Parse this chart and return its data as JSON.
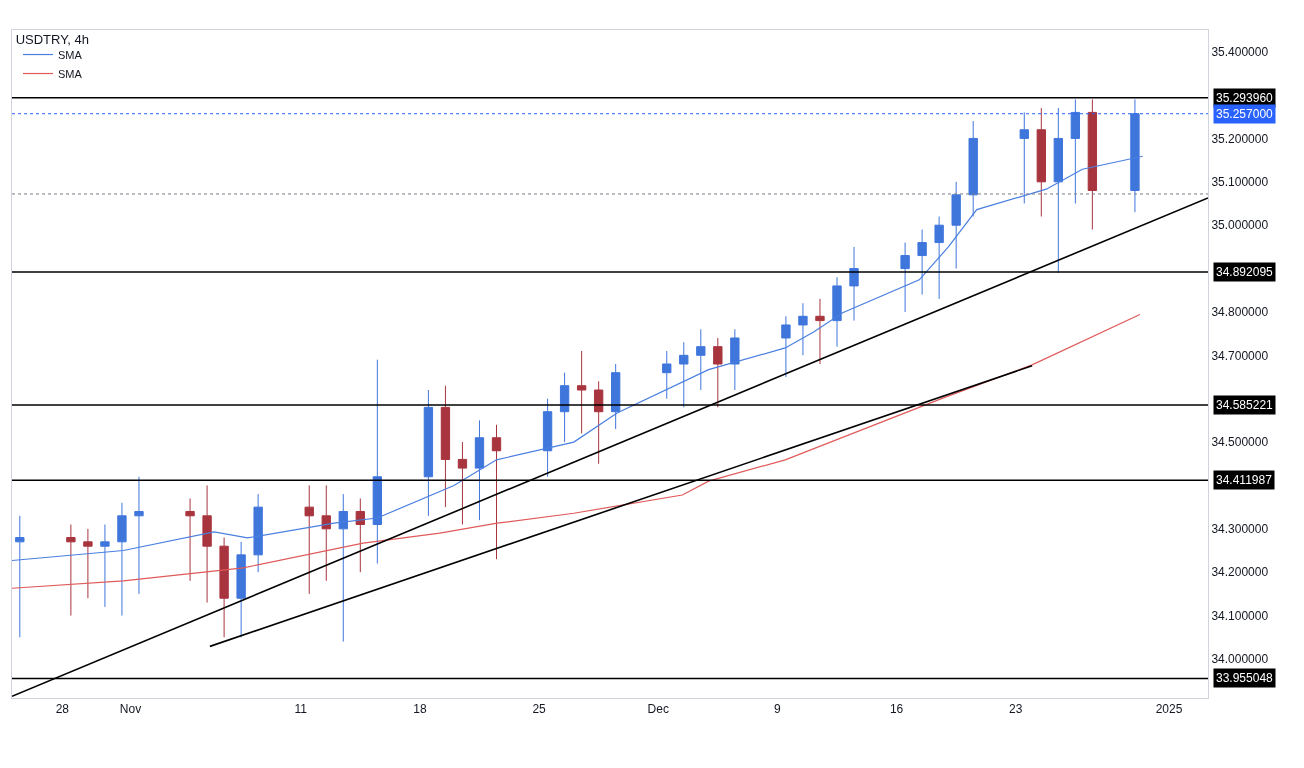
{
  "chart_data": {
    "type": "candlestick",
    "title": "USDTRY, 4h",
    "x": [
      "2024-10-25T12:00",
      "2024-10-28T12:00",
      "2024-10-29T12:00",
      "2024-10-30T12:00",
      "2024-10-31T12:00",
      "2024-11-01T12:00",
      "2024-11-04T12:00",
      "2024-11-05T12:00",
      "2024-11-06T12:00",
      "2024-11-07T12:00",
      "2024-11-08T12:00",
      "2024-11-11T12:00",
      "2024-11-12T12:00",
      "2024-11-13T12:00",
      "2024-11-14T12:00",
      "2024-11-15T12:00",
      "2024-11-18T12:00",
      "2024-11-19T12:00",
      "2024-11-20T12:00",
      "2024-11-21T12:00",
      "2024-11-22T12:00",
      "2024-11-25T12:00",
      "2024-11-26T12:00",
      "2024-11-27T12:00",
      "2024-11-28T12:00",
      "2024-11-29T12:00",
      "2024-12-02T12:00",
      "2024-12-03T12:00",
      "2024-12-04T12:00",
      "2024-12-05T12:00",
      "2024-12-06T12:00",
      "2024-12-09T12:00",
      "2024-12-10T12:00",
      "2024-12-11T12:00",
      "2024-12-12T12:00",
      "2024-12-13T12:00",
      "2024-12-16T12:00",
      "2024-12-17T12:00",
      "2024-12-18T12:00",
      "2024-12-19T12:00",
      "2024-12-20T12:00",
      "2024-12-23T12:00",
      "2024-12-24T12:00",
      "2024-12-25T12:00",
      "2024-12-26T12:00",
      "2024-12-27T12:00",
      "2024-12-30T00:00"
    ],
    "ohlc": [
      [
        34.27,
        34.33,
        34.05,
        34.28
      ],
      [
        34.28,
        34.31,
        34.1,
        34.27
      ],
      [
        34.27,
        34.3,
        34.14,
        34.26
      ],
      [
        34.26,
        34.31,
        34.12,
        34.27
      ],
      [
        34.27,
        34.36,
        34.1,
        34.33
      ],
      [
        34.33,
        34.42,
        34.15,
        34.34
      ],
      [
        34.34,
        34.37,
        34.18,
        34.33
      ],
      [
        34.33,
        34.4,
        34.13,
        34.26
      ],
      [
        34.26,
        34.28,
        34.05,
        34.14
      ],
      [
        34.14,
        34.27,
        34.05,
        34.24
      ],
      [
        34.24,
        34.38,
        34.2,
        34.35
      ],
      [
        34.35,
        34.4,
        34.15,
        34.33
      ],
      [
        34.33,
        34.4,
        34.18,
        34.3
      ],
      [
        34.3,
        34.38,
        34.04,
        34.34
      ],
      [
        34.34,
        34.37,
        34.2,
        34.31
      ],
      [
        34.31,
        34.69,
        34.22,
        34.42
      ],
      [
        34.42,
        34.62,
        34.33,
        34.58
      ],
      [
        34.58,
        34.63,
        34.35,
        34.46
      ],
      [
        34.46,
        34.5,
        34.31,
        34.44
      ],
      [
        34.44,
        34.55,
        34.32,
        34.51
      ],
      [
        34.51,
        34.54,
        34.23,
        34.48
      ],
      [
        34.48,
        34.6,
        34.42,
        34.57
      ],
      [
        34.57,
        34.66,
        34.5,
        34.63
      ],
      [
        34.63,
        34.71,
        34.52,
        34.62
      ],
      [
        34.62,
        34.64,
        34.45,
        34.57
      ],
      [
        34.57,
        34.68,
        34.53,
        34.66
      ],
      [
        34.66,
        34.71,
        34.6,
        34.68
      ],
      [
        34.68,
        34.73,
        34.58,
        34.7
      ],
      [
        34.7,
        34.76,
        34.62,
        34.72
      ],
      [
        34.72,
        34.74,
        34.58,
        34.68
      ],
      [
        34.68,
        34.76,
        34.62,
        34.74
      ],
      [
        34.74,
        34.79,
        34.65,
        34.77
      ],
      [
        34.77,
        34.82,
        34.7,
        34.79
      ],
      [
        34.79,
        34.83,
        34.68,
        34.78
      ],
      [
        34.78,
        34.88,
        34.72,
        34.86
      ],
      [
        34.86,
        34.95,
        34.78,
        34.9
      ],
      [
        34.9,
        34.96,
        34.8,
        34.93
      ],
      [
        34.93,
        34.99,
        34.84,
        34.96
      ],
      [
        34.96,
        35.02,
        34.83,
        35.0
      ],
      [
        35.0,
        35.1,
        34.9,
        35.07
      ],
      [
        35.07,
        35.24,
        35.02,
        35.2
      ],
      [
        35.2,
        35.26,
        35.05,
        35.22
      ],
      [
        35.22,
        35.27,
        35.02,
        35.1
      ],
      [
        35.1,
        35.27,
        34.89,
        35.2
      ],
      [
        35.2,
        35.29,
        35.05,
        35.26
      ],
      [
        35.26,
        35.29,
        34.99,
        35.08
      ],
      [
        35.08,
        35.29,
        35.03,
        35.257
      ]
    ],
    "colors": [
      "#3f76dc",
      "#a8353e",
      "#a8353e",
      "#3f76dc",
      "#3f76dc",
      "#3f76dc",
      "#a8353e",
      "#a8353e",
      "#a8353e",
      "#3f76dc",
      "#3f76dc",
      "#a8353e",
      "#a8353e",
      "#3f76dc",
      "#a8353e",
      "#3f76dc",
      "#3f76dc",
      "#a8353e",
      "#a8353e",
      "#3f76dc",
      "#a8353e",
      "#3f76dc",
      "#3f76dc",
      "#a8353e",
      "#a8353e",
      "#3f76dc",
      "#3f76dc",
      "#3f76dc",
      "#3f76dc",
      "#a8353e",
      "#3f76dc",
      "#3f76dc",
      "#3f76dc",
      "#a8353e",
      "#3f76dc",
      "#3f76dc",
      "#3f76dc",
      "#3f76dc",
      "#3f76dc",
      "#3f76dc",
      "#3f76dc",
      "#3f76dc",
      "#a8353e",
      "#3f76dc",
      "#3f76dc",
      "#a8353e",
      "#3f76dc"
    ],
    "series": [
      {
        "name": "SMA",
        "type": "line",
        "color": "#4a7fe0",
        "x": [
          "2024-10-25T01:00",
          "2024-10-31T14:00",
          "2024-11-05T22:00",
          "2024-11-07T21:00",
          "2024-11-12T23:00",
          "2024-11-15T12:00",
          "2024-11-20T00:00",
          "2024-11-22T12:00",
          "2024-11-27T01:00",
          "2024-11-29T14:00",
          "2024-12-04T23:00",
          "2024-12-09T11:00",
          "2024-12-11T03:00",
          "2024-12-12T20:00",
          "2024-12-17T08:00",
          "2024-12-19T01:00",
          "2024-12-20T17:00",
          "2024-12-24T19:00",
          "2024-12-26T22:00",
          "2024-12-30T11:00"
        ],
        "values": [
          34.227,
          34.25,
          34.293,
          34.279,
          34.313,
          34.325,
          34.4,
          34.459,
          34.5,
          34.567,
          34.667,
          34.717,
          34.754,
          34.798,
          34.874,
          34.95,
          35.036,
          35.083,
          35.129,
          35.159
        ]
      },
      {
        "name": "SMA",
        "type": "line",
        "color": "#e05a5a",
        "x": [
          "2024-10-25T01:00",
          "2024-10-31T14:00",
          "2024-11-07T15:00",
          "2024-11-14T16:00",
          "2024-11-19T04:00",
          "2024-11-22T13:00",
          "2024-11-27T01:00",
          "2024-12-03T10:00",
          "2024-12-04T23:00",
          "2024-12-09T11:00",
          "2024-12-18T18:00",
          "2024-12-23T23:00",
          "2024-12-30T07:00"
        ],
        "values": [
          34.163,
          34.18,
          34.21,
          34.267,
          34.29,
          34.313,
          34.336,
          34.378,
          34.41,
          34.459,
          34.602,
          34.678,
          34.794
        ]
      },
      {
        "type": "line",
        "color": "#000000",
        "x": [
          "2024-10-25T01:00",
          "2025-01-03T07:00"
        ],
        "values": [
          33.914,
          35.063
        ]
      },
      {
        "type": "line",
        "color": "#000000",
        "x": [
          "2024-11-05T16:00",
          "2024-12-23T23:00"
        ],
        "values": [
          34.029,
          34.676
        ]
      }
    ],
    "ref_lines": [
      {
        "axis": "y",
        "value": 35.29396,
        "label": "35.293960",
        "color": "#000000",
        "line_style": "solid"
      },
      {
        "axis": "y",
        "value": 34.892095,
        "label": "34.892095",
        "color": "#000000",
        "line_style": "solid"
      },
      {
        "axis": "y",
        "value": 34.585221,
        "label": "34.585221",
        "color": "#000000",
        "line_style": "solid"
      },
      {
        "axis": "y",
        "value": 34.411987,
        "label": "34.411987",
        "color": "#000000",
        "line_style": "solid"
      },
      {
        "axis": "y",
        "value": 33.955048,
        "label": "33.955048",
        "color": "#000000",
        "line_style": "solid"
      },
      {
        "axis": "y",
        "value": 35.072,
        "color": "#787b86",
        "line_style": "dotted"
      },
      {
        "axis": "y",
        "value": 35.257,
        "label": "35.257000",
        "color": "#2962ff",
        "line_style": "dotted"
      }
    ],
    "xlim": [
      "2024-10-25T01:00",
      "2025-01-03T07:00"
    ],
    "xticks": [
      {
        "value": "2024-10-28",
        "label": "28"
      },
      {
        "value": "2024-11-01",
        "label": "Nov"
      },
      {
        "value": "2024-11-11",
        "label": "11"
      },
      {
        "value": "2024-11-18",
        "label": "18"
      },
      {
        "value": "2024-11-25",
        "label": "25"
      },
      {
        "value": "2024-12-02",
        "label": "Dec"
      },
      {
        "value": "2024-12-09",
        "label": "9"
      },
      {
        "value": "2024-12-16",
        "label": "16"
      },
      {
        "value": "2024-12-23",
        "label": "23"
      },
      {
        "value": "2025-01-01",
        "label": "2025"
      }
    ],
    "ylim": [
      33.91,
      35.45
    ],
    "yticks": [
      {
        "value": 34.0,
        "label": "34.000000"
      },
      {
        "value": 34.1,
        "label": "34.100000"
      },
      {
        "value": 34.2,
        "label": "34.200000"
      },
      {
        "value": 34.3,
        "label": "34.300000"
      },
      {
        "value": 34.5,
        "label": "34.500000"
      },
      {
        "value": 34.7,
        "label": "34.700000"
      },
      {
        "value": 34.8,
        "label": "34.800000"
      },
      {
        "value": 35.0,
        "label": "35.000000"
      },
      {
        "value": 35.1,
        "label": "35.100000"
      },
      {
        "value": 35.2,
        "label": "35.200000"
      },
      {
        "value": 35.4,
        "label": "35.400000"
      }
    ],
    "legend": "top left"
  }
}
